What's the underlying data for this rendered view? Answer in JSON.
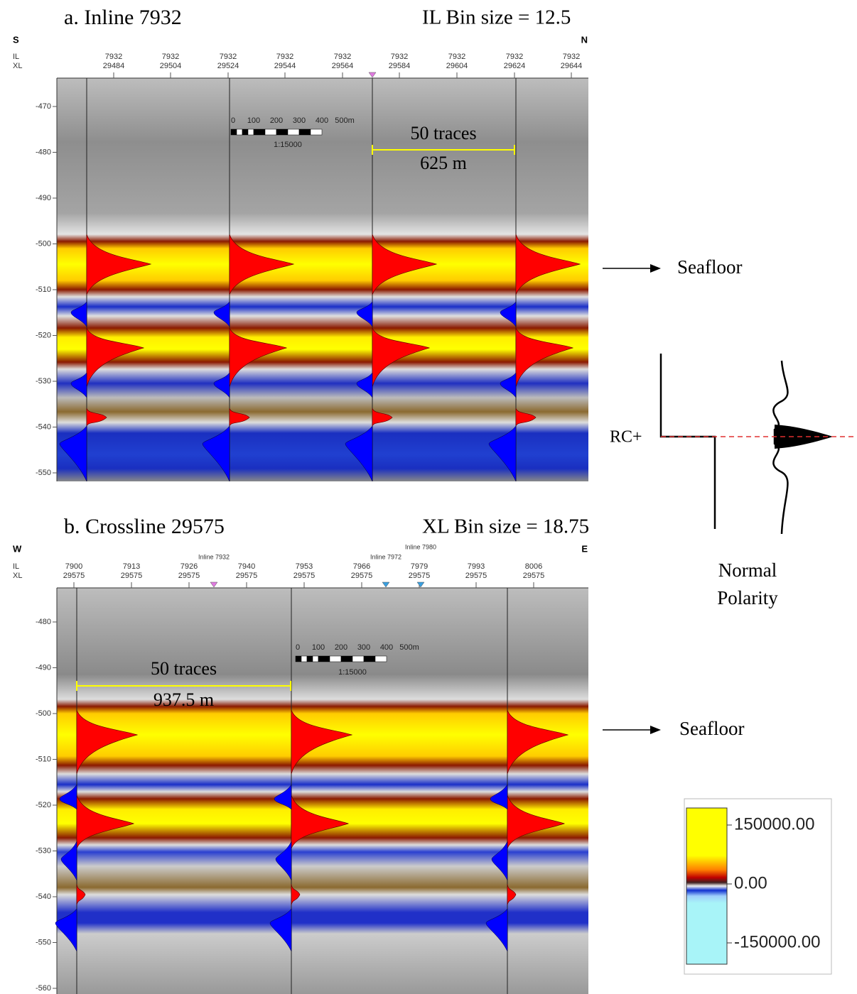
{
  "panels": [
    {
      "title": "a. Inline 7932",
      "bin_size": "IL Bin size = 12.5",
      "left_dir": "S",
      "right_dir": "N",
      "row_labels": [
        "IL",
        "XL"
      ],
      "columns": [
        [
          "7932",
          "29484"
        ],
        [
          "7932",
          "29504"
        ],
        [
          "7932",
          "29524"
        ],
        [
          "7932",
          "29544"
        ],
        [
          "7932",
          "29564"
        ],
        [
          "7932",
          "29584"
        ],
        [
          "7932",
          "29604"
        ],
        [
          "7932",
          "29624"
        ],
        [
          "7932",
          "29644"
        ]
      ],
      "markers": [],
      "depth_ticks": [
        "-470",
        "-480",
        "-490",
        "-500",
        "-510",
        "-520",
        "-530",
        "-540",
        "-550"
      ],
      "scale_bar": {
        "labels": [
          "0",
          "100",
          "200",
          "300",
          "400",
          "500m"
        ],
        "ratio": "1:15000"
      },
      "measure": {
        "traces": "50 traces",
        "distance": "625 m"
      },
      "annotation": "Seafloor"
    },
    {
      "title": "b. Crossline 29575",
      "bin_size": "XL Bin size = 18.75",
      "left_dir": "W",
      "right_dir": "E",
      "row_labels": [
        "IL",
        "XL"
      ],
      "columns": [
        [
          "7900",
          "29575"
        ],
        [
          "7913",
          "29575"
        ],
        [
          "7926",
          "29575"
        ],
        [
          "7940",
          "29575"
        ],
        [
          "7953",
          "29575"
        ],
        [
          "7966",
          "29575"
        ],
        [
          "7979",
          "29575"
        ],
        [
          "7993",
          "29575"
        ],
        [
          "8006",
          "29575"
        ]
      ],
      "markers": [
        "Inline 7932",
        "Inline 7972",
        "Inline 7980"
      ],
      "depth_ticks": [
        "-480",
        "-490",
        "-500",
        "-510",
        "-520",
        "-530",
        "-540",
        "-550",
        "-560"
      ],
      "scale_bar": {
        "labels": [
          "0",
          "100",
          "200",
          "300",
          "400",
          "500m"
        ],
        "ratio": "1:15000"
      },
      "measure": {
        "traces": "50 traces",
        "distance": "937.5 m"
      },
      "annotation": "Seafloor"
    }
  ],
  "polarity": {
    "label": "RC+",
    "caption": [
      "Normal",
      "Polarity"
    ]
  },
  "colorbar": {
    "labels": [
      "150000.00",
      "0.00",
      "-150000.00"
    ]
  }
}
